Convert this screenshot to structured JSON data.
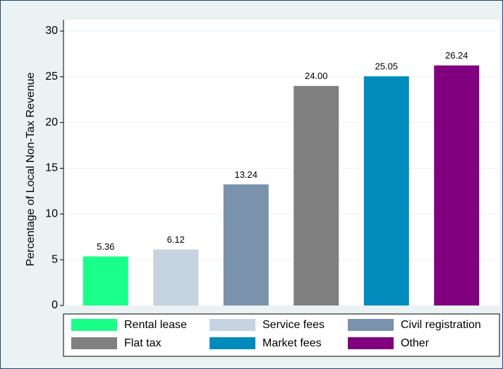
{
  "chart_data": {
    "type": "bar",
    "y_label": "Percentage of Local Non-Tax Revenue",
    "ylim": [
      0,
      30
    ],
    "yticks": [
      0,
      5,
      10,
      15,
      20,
      25,
      30
    ],
    "grid": true,
    "series": [
      {
        "name": "Rental lease",
        "color": "#19ff8a",
        "values": [
          5.36
        ]
      },
      {
        "name": "Service fees",
        "color": "#c6d3e0",
        "values": [
          6.12
        ]
      },
      {
        "name": "Civil registration",
        "color": "#7a92ab",
        "values": [
          13.24
        ]
      },
      {
        "name": "Flat tax",
        "color": "#808080",
        "values": [
          24
        ],
        "value_labels": [
          "24.00"
        ]
      },
      {
        "name": "Market fees",
        "color": "#008bbd",
        "values": [
          25.05
        ]
      },
      {
        "name": "Other",
        "color": "#800080",
        "values": [
          26.24
        ]
      }
    ]
  }
}
